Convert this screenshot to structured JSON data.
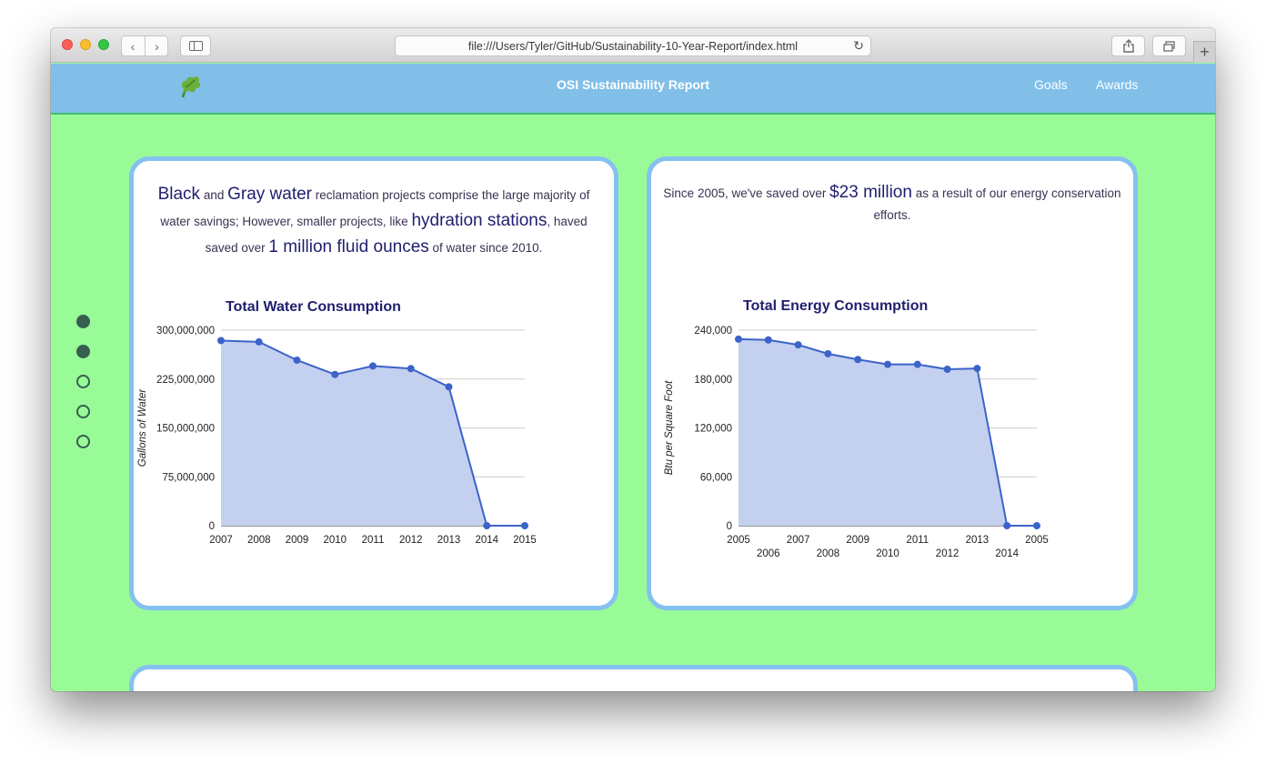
{
  "browser": {
    "url": "file:///Users/Tyler/GitHub/Sustainability-10-Year-Report/index.html",
    "back_icon": "chevron-left-icon",
    "forward_icon": "chevron-right-icon",
    "reload_icon": "reload-icon"
  },
  "header": {
    "title": "OSI Sustainability Report",
    "nav": [
      "Goals",
      "Awards"
    ]
  },
  "pager": {
    "total": 5,
    "active": [
      0,
      1
    ]
  },
  "water_card": {
    "t1": "Black",
    "t2": " and ",
    "t3": "Gray water",
    "t4": " reclamation projects comprise the large majority of water savings; However, smaller projects, like ",
    "t5": "hydration stations",
    "t6": ", haved saved over ",
    "t7": "1 million fluid ounces",
    "t8": " of water since 2010."
  },
  "energy_card": {
    "t1": "Since 2005, we've saved over ",
    "t2": "$23 million",
    "t3": " as a result of our energy conservation efforts."
  },
  "chart_data": [
    {
      "type": "area",
      "title": "Total Water Consumption",
      "ylabel": "Gallons of Water",
      "xlabel": "",
      "categories": [
        "2007",
        "2008",
        "2009",
        "2010",
        "2011",
        "2012",
        "2013",
        "2014",
        "2015"
      ],
      "values": [
        284000000,
        282000000,
        254000000,
        232000000,
        245000000,
        241000000,
        213000000,
        0,
        0
      ],
      "yticks": [
        0,
        75000000,
        150000000,
        225000000,
        300000000
      ],
      "ytick_labels": [
        "0",
        "75,000,000",
        "150,000,000",
        "225,000,000",
        "300,000,000"
      ],
      "ylim": [
        0,
        300000000
      ],
      "grid": true,
      "color": "#3b63c9",
      "fill": "#c4d0ef"
    },
    {
      "type": "area",
      "title": "Total Energy Consumption",
      "ylabel": "Btu per Square Foot",
      "xlabel": "",
      "categories": [
        "2005",
        "2006",
        "2007",
        "2008",
        "2009",
        "2010",
        "2011",
        "2012",
        "2013",
        "2014",
        "2005"
      ],
      "values": [
        229000,
        228000,
        222000,
        211000,
        204000,
        198000,
        198000,
        192000,
        193000,
        0,
        0
      ],
      "yticks": [
        0,
        60000,
        120000,
        180000,
        240000
      ],
      "ytick_labels": [
        "0",
        "60,000",
        "120,000",
        "180,000",
        "240,000"
      ],
      "ylim": [
        0,
        240000
      ],
      "grid": true,
      "color": "#3b63c9",
      "fill": "#c4d0ef"
    }
  ]
}
